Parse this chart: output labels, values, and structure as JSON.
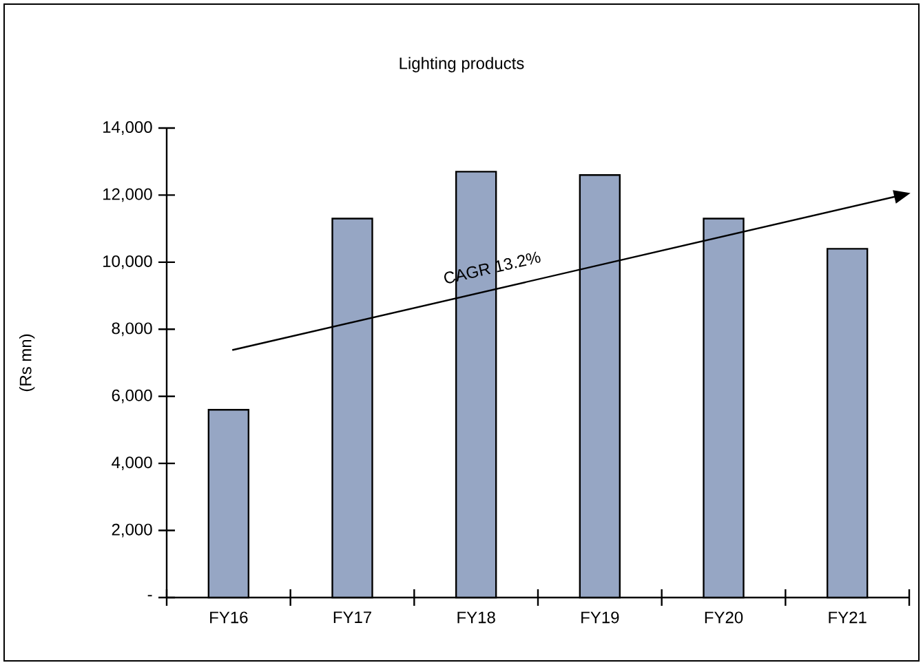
{
  "chart_data": {
    "type": "bar",
    "title": "Lighting products",
    "ylabel": "(Rs mn)",
    "categories": [
      "FY16",
      "FY17",
      "FY18",
      "FY19",
      "FY20",
      "FY21"
    ],
    "values": [
      5600,
      11300,
      12700,
      12600,
      11300,
      10400
    ],
    "color": "#96a6c4",
    "ylim": [
      0,
      14000
    ],
    "yticks": [
      {
        "value": 0,
        "label": "-"
      },
      {
        "value": 2000,
        "label": "2,000"
      },
      {
        "value": 4000,
        "label": "4,000"
      },
      {
        "value": 6000,
        "label": "6,000"
      },
      {
        "value": 8000,
        "label": "8,000"
      },
      {
        "value": 10000,
        "label": "10,000"
      },
      {
        "value": 12000,
        "label": "12,000"
      },
      {
        "value": 14000,
        "label": "14,000"
      }
    ],
    "annotations": [
      "CAGR 13.2%"
    ]
  }
}
